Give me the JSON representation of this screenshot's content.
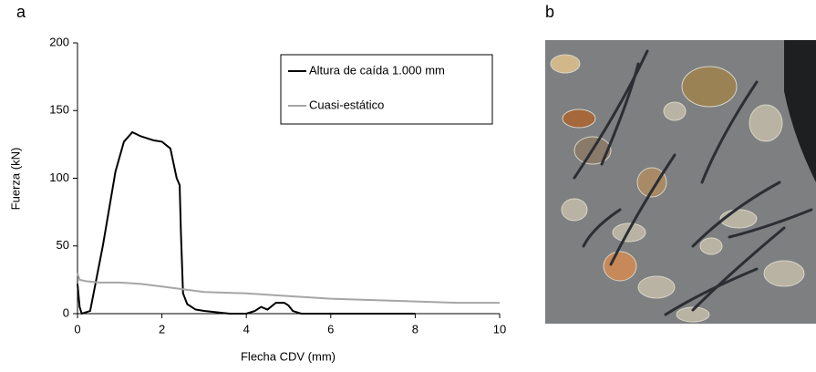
{
  "chart_data": {
    "type": "line",
    "panel_label": "a",
    "x_label": "Flecha CDV (mm)",
    "y_label": "Fuerza (kN)",
    "xlim": [
      0,
      10
    ],
    "xticks": [
      0,
      2,
      4,
      6,
      8,
      10
    ],
    "ylim": [
      0,
      200
    ],
    "yticks": [
      0,
      50,
      100,
      150,
      200
    ],
    "legend": "top-right",
    "series": [
      {
        "name": "Altura de caída 1.000 mm",
        "color": "#000000",
        "x": [
          0,
          0.05,
          0.1,
          0.3,
          0.6,
          0.9,
          1.1,
          1.3,
          1.5,
          1.8,
          2.0,
          2.2,
          2.35,
          2.42,
          2.45,
          2.5,
          2.6,
          2.8,
          3.0,
          3.3,
          3.6,
          4.0,
          4.2,
          4.35,
          4.5,
          4.7,
          4.9,
          5.0,
          5.1,
          5.3,
          6.0,
          8.0
        ],
        "values": [
          22,
          5,
          0,
          2,
          50,
          105,
          127,
          134,
          131,
          128,
          127,
          122,
          100,
          95,
          60,
          15,
          7,
          3,
          2,
          1,
          0,
          0,
          2,
          5,
          3,
          8,
          8,
          6,
          2,
          0,
          0,
          0
        ]
      },
      {
        "name": "Cuasi-estático",
        "color": "#a6a6a6",
        "x": [
          0,
          0.05,
          0.2,
          0.5,
          1.0,
          1.5,
          2.0,
          2.5,
          3.0,
          4.0,
          5.0,
          6.0,
          7.0,
          8.0,
          9.0,
          10.0
        ],
        "values": [
          30,
          25,
          24,
          23,
          23,
          22,
          20,
          18,
          16,
          15,
          13,
          11,
          10,
          9,
          8,
          8
        ]
      }
    ]
  },
  "photo": {
    "panel_label": "b"
  }
}
